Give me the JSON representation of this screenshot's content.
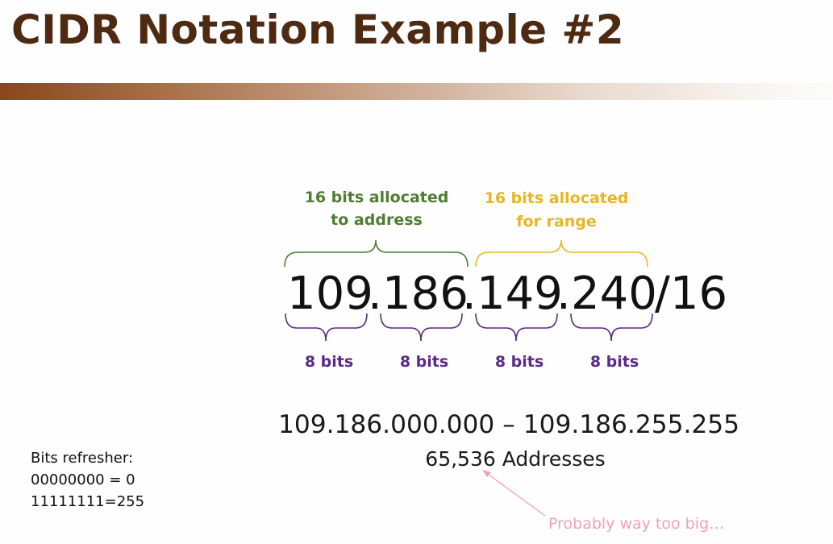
{
  "slide": {
    "title": "CIDR Notation Example #2"
  },
  "cidr": {
    "octet1": "109",
    "dot1": ".",
    "octet2": "186",
    "dot2": ".",
    "octet3": "149",
    "dot3": ".",
    "octet4": "240",
    "prefix": "/16"
  },
  "allocation": {
    "address_line1": "16 bits allocated",
    "address_line2": "to address",
    "range_line1": "16 bits allocated",
    "range_line2": "for range",
    "address_color": "#4f7d32",
    "range_color": "#e9b526"
  },
  "octet_bits": [
    "8 bits",
    "8 bits",
    "8 bits",
    "8 bits"
  ],
  "octet_bits_color": "#5b2a86",
  "range": {
    "text": "109.186.000.000 – 109.186.255.255",
    "count": "65,536 Addresses"
  },
  "annotation": {
    "text": "Probably way too big…",
    "color": "#f0a2b5"
  },
  "refresher": {
    "heading": "Bits refresher:",
    "line1": "00000000 = 0",
    "line2": "11111111=255"
  },
  "colors": {
    "title": "#4e2a12",
    "title_bar": "#8a4619"
  }
}
